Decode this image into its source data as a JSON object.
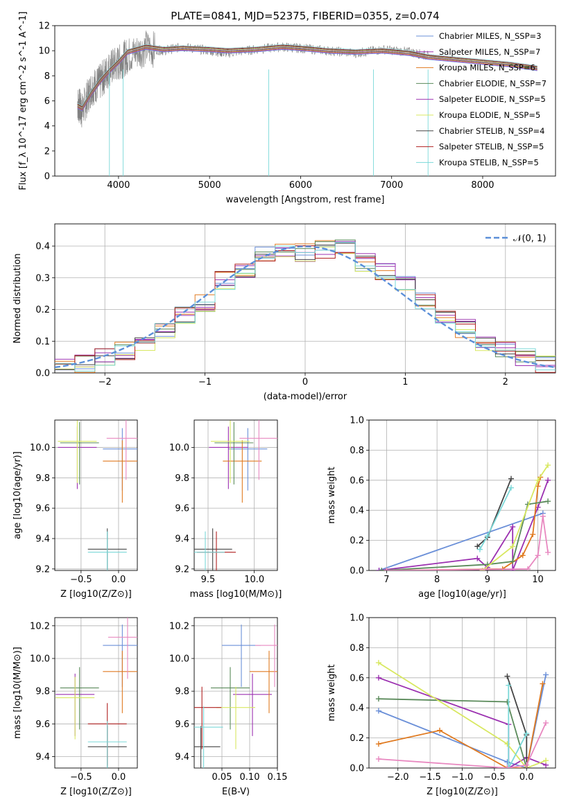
{
  "figure_title": "PLATE=0841, MJD=52375, FIBERID=0355, z=0.074",
  "colors": {
    "chabrier_miles": "#6a8fd8",
    "salpeter_miles": "#9b30b0",
    "kroupa_miles": "#e07a20",
    "chabrier_elodie": "#5a8a5a",
    "salpeter_elodie": "#9b30b0",
    "kroupa_elodie": "#d8e860",
    "chabrier_stelib": "#444444",
    "salpeter_stelib": "#b02020",
    "kroupa_stelib": "#7ad8d8",
    "pink": "#e888c0",
    "data": "#808080",
    "normal": "#5b8fd8"
  },
  "chart_data": [
    {
      "type": "line",
      "id": "spectrum",
      "title": "PLATE=0841, MJD=52375, FIBERID=0355, z=0.074",
      "xlabel": "wavelength [Angstrom, rest frame]",
      "ylabel": "Flux [f_λ 10^-17 erg cm^-2 s^-1 A^-1]",
      "xlim": [
        3300,
        8800
      ],
      "ylim": [
        0,
        12
      ],
      "xticks": [
        "4000",
        "5000",
        "6000",
        "7000",
        "8000"
      ],
      "yticks": [
        "0",
        "2",
        "4",
        "6",
        "8",
        "10",
        "12"
      ],
      "x": [
        3550,
        3600,
        3700,
        3800,
        3900,
        4000,
        4100,
        4300,
        4500,
        4700,
        5000,
        5200,
        5500,
        5800,
        6000,
        6300,
        6600,
        6900,
        7200,
        7400,
        7700,
        8000,
        8300,
        8500,
        8600
      ],
      "series": [
        {
          "name": "data",
          "values": [
            5.8,
            5.2,
            7.0,
            7.5,
            8.6,
            9.0,
            9.6,
            10.2,
            10.0,
            10.3,
            10.0,
            9.8,
            10.1,
            10.3,
            10.2,
            10.0,
            9.8,
            10.1,
            9.9,
            9.6,
            9.3,
            9.1,
            8.9,
            8.7,
            8.6
          ]
        },
        {
          "name": "model",
          "values": [
            5.6,
            5.4,
            6.6,
            7.6,
            8.4,
            9.1,
            9.9,
            10.3,
            10.1,
            10.2,
            10.1,
            10.0,
            10.1,
            10.3,
            10.2,
            10.0,
            9.9,
            10.0,
            9.8,
            9.5,
            9.3,
            9.1,
            8.9,
            8.7,
            8.6
          ]
        }
      ],
      "legend": [
        {
          "name": "Chabrier MILES",
          "nssp": "N_SSP=3",
          "color": "#6a8fd8"
        },
        {
          "name": "Salpeter MILES",
          "nssp": "N_SSP=7",
          "color": "#9b30b0"
        },
        {
          "name": "Kroupa MILES",
          "nssp": "N_SSP=6",
          "color": "#e07a20"
        },
        {
          "name": "Chabrier ELODIE",
          "nssp": "N_SSP=7",
          "color": "#5a8a5a"
        },
        {
          "name": "Salpeter ELODIE",
          "nssp": "N_SSP=5",
          "color": "#9b30b0"
        },
        {
          "name": "Kroupa ELODIE",
          "nssp": "N_SSP=5",
          "color": "#d8e860"
        },
        {
          "name": "Chabrier STELIB",
          "nssp": "N_SSP=4",
          "color": "#444444"
        },
        {
          "name": "Salpeter STELIB",
          "nssp": "N_SSP=5",
          "color": "#b02020"
        },
        {
          "name": "Kroupa STELIB",
          "nssp": "N_SSP=5",
          "color": "#7ad8d8"
        }
      ],
      "legend_position": "top-right"
    },
    {
      "type": "line",
      "id": "residuals",
      "xlabel": "(data-model)/error",
      "ylabel": "Normed distribution",
      "xlim": [
        -2.5,
        2.5
      ],
      "ylim": [
        0,
        0.47
      ],
      "xticks": [
        "−2",
        "−1",
        "0",
        "1",
        "2"
      ],
      "yticks": [
        "0.0",
        "0.1",
        "0.2",
        "0.3",
        "0.4"
      ],
      "grid": true,
      "legend": [
        {
          "name": "𝒩(0, 1)",
          "color": "#5b8fd8"
        }
      ],
      "legend_position": "top-right",
      "x": [
        -2.5,
        -2.3,
        -2.1,
        -1.9,
        -1.7,
        -1.5,
        -1.3,
        -1.1,
        -0.9,
        -0.7,
        -0.5,
        -0.3,
        -0.1,
        0.1,
        0.3,
        0.5,
        0.7,
        0.9,
        1.1,
        1.3,
        1.5,
        1.7,
        1.9,
        2.1,
        2.3,
        2.5
      ],
      "series": [
        {
          "name": "histogram",
          "values": [
            0.02,
            0.03,
            0.05,
            0.07,
            0.09,
            0.13,
            0.18,
            0.22,
            0.29,
            0.33,
            0.37,
            0.38,
            0.38,
            0.39,
            0.4,
            0.35,
            0.32,
            0.29,
            0.23,
            0.18,
            0.14,
            0.1,
            0.07,
            0.05,
            0.03,
            0.02
          ]
        }
      ]
    },
    {
      "type": "scatter",
      "id": "age_vs_Z",
      "xlabel": "Z [log10(Z/Z⊙)]",
      "ylabel": "age [log10(age/yr)]",
      "xlim": [
        -0.85,
        0.25
      ],
      "ylim": [
        9.19,
        10.18
      ],
      "xticks": [
        "−0.5",
        "0.0"
      ],
      "yticks": [
        "9.2",
        "9.4",
        "9.6",
        "9.8",
        "10.0"
      ],
      "points": [
        {
          "x": 0.05,
          "y": 9.99,
          "color": "#6a8fd8"
        },
        {
          "x": -0.55,
          "y": 10.0,
          "color": "#9b30b0"
        },
        {
          "x": 0.05,
          "y": 9.91,
          "color": "#e07a20"
        },
        {
          "x": -0.52,
          "y": 10.03,
          "color": "#5a8a5a"
        },
        {
          "x": -0.55,
          "y": 10.04,
          "color": "#d8e860"
        },
        {
          "x": -0.15,
          "y": 9.33,
          "color": "#444444"
        },
        {
          "x": -0.15,
          "y": 9.31,
          "color": "#7ad8d8"
        },
        {
          "x": 0.1,
          "y": 10.06,
          "color": "#e888c0"
        }
      ]
    },
    {
      "type": "scatter",
      "id": "age_vs_mass",
      "xlabel": "mass [log10(M/M⊙)]",
      "ylabel": "",
      "xlim": [
        9.35,
        10.25
      ],
      "ylim": [
        9.19,
        10.18
      ],
      "xticks": [
        "9.5",
        "10.0"
      ],
      "yticks": [
        "9.2",
        "9.4",
        "9.6",
        "9.8",
        "10.0"
      ],
      "points": [
        {
          "x": 9.93,
          "y": 9.99,
          "color": "#6a8fd8"
        },
        {
          "x": 9.72,
          "y": 10.0,
          "color": "#9b30b0"
        },
        {
          "x": 9.87,
          "y": 9.91,
          "color": "#e07a20"
        },
        {
          "x": 9.78,
          "y": 10.03,
          "color": "#5a8a5a"
        },
        {
          "x": 9.74,
          "y": 10.04,
          "color": "#d8e860"
        },
        {
          "x": 9.55,
          "y": 9.33,
          "color": "#444444"
        },
        {
          "x": 9.59,
          "y": 9.31,
          "color": "#b02020"
        },
        {
          "x": 9.47,
          "y": 9.31,
          "color": "#7ad8d8"
        },
        {
          "x": 10.05,
          "y": 10.06,
          "color": "#e888c0"
        }
      ]
    },
    {
      "type": "line",
      "id": "weight_vs_age",
      "xlabel": "age [log10(age/yr)]",
      "ylabel": "mass weight",
      "xlim": [
        6.65,
        10.35
      ],
      "ylim": [
        0,
        1.0
      ],
      "xticks": [
        "7",
        "8",
        "9",
        "10"
      ],
      "yticks": [
        "0.0",
        "0.2",
        "0.4",
        "0.6",
        "0.8",
        "1.0"
      ],
      "grid": true,
      "series": [
        {
          "name": "Chabrier MILES",
          "color": "#6a8fd8",
          "x": [
            6.85,
            10.1
          ],
          "y": [
            0.0,
            0.38
          ]
        },
        {
          "name": "Salpeter MILES",
          "color": "#9b30b0",
          "x": [
            6.85,
            8.8,
            9.0,
            9.5,
            9.5,
            10.0,
            10.2
          ],
          "y": [
            0.0,
            0.08,
            0.02,
            0.29,
            0.0,
            0.42,
            0.6
          ]
        },
        {
          "name": "Kroupa MILES",
          "color": "#e07a20",
          "x": [
            7.0,
            9.3,
            9.7,
            9.9,
            10.0,
            10.05
          ],
          "y": [
            0.0,
            0.01,
            0.1,
            0.24,
            0.56,
            0.62
          ]
        },
        {
          "name": "Chabrier ELODIE",
          "color": "#5a8a5a",
          "x": [
            6.9,
            9.0,
            9.5,
            9.8,
            10.2
          ],
          "y": [
            0.0,
            0.04,
            0.06,
            0.44,
            0.46
          ]
        },
        {
          "name": "Kroupa ELODIE",
          "color": "#d8e860",
          "x": [
            8.9,
            9.5,
            10.0,
            10.2
          ],
          "y": [
            0.0,
            0.16,
            0.6,
            0.7
          ]
        },
        {
          "name": "Chabrier STELIB",
          "color": "#444444",
          "x": [
            8.8,
            9.0,
            9.47
          ],
          "y": [
            0.16,
            0.22,
            0.61
          ]
        },
        {
          "name": "Kroupa STELIB",
          "color": "#7ad8d8",
          "x": [
            8.85,
            9.0,
            9.47
          ],
          "y": [
            0.14,
            0.23,
            0.55
          ]
        },
        {
          "name": "pink",
          "color": "#e888c0",
          "x": [
            7.0,
            9.8,
            10.0,
            10.1,
            10.2
          ],
          "y": [
            0.0,
            0.01,
            0.1,
            0.36,
            0.12
          ]
        }
      ]
    },
    {
      "type": "scatter",
      "id": "mass_vs_Z",
      "xlabel": "Z [log10(Z/Z⊙)]",
      "ylabel": "mass [log10(M/M⊙)]",
      "xlim": [
        -0.85,
        0.25
      ],
      "ylim": [
        9.33,
        10.25
      ],
      "xticks": [
        "−0.5",
        "0.0"
      ],
      "yticks": [
        "9.4",
        "9.6",
        "9.8",
        "10.0",
        "10.2"
      ],
      "points": [
        {
          "x": 0.05,
          "y": 10.08,
          "color": "#6a8fd8"
        },
        {
          "x": -0.58,
          "y": 9.78,
          "color": "#9b30b0"
        },
        {
          "x": 0.05,
          "y": 9.92,
          "color": "#e07a20"
        },
        {
          "x": -0.52,
          "y": 9.82,
          "color": "#5a8a5a"
        },
        {
          "x": -0.58,
          "y": 9.76,
          "color": "#d8e860"
        },
        {
          "x": -0.15,
          "y": 9.46,
          "color": "#444444"
        },
        {
          "x": -0.15,
          "y": 9.6,
          "color": "#b02020"
        },
        {
          "x": -0.15,
          "y": 9.49,
          "color": "#7ad8d8"
        },
        {
          "x": 0.12,
          "y": 10.13,
          "color": "#e888c0"
        }
      ]
    },
    {
      "type": "scatter",
      "id": "mass_vs_EBV",
      "xlabel": "E(B-V)",
      "ylabel": "",
      "xlim": [
        0.0,
        0.15
      ],
      "ylim": [
        9.33,
        10.25
      ],
      "xticks": [
        "0.05",
        "0.10",
        "0.15"
      ],
      "yticks": [
        "9.4",
        "9.6",
        "9.8",
        "10.0",
        "10.2"
      ],
      "points": [
        {
          "x": 0.085,
          "y": 10.08,
          "color": "#6a8fd8"
        },
        {
          "x": 0.105,
          "y": 9.78,
          "color": "#9b30b0"
        },
        {
          "x": 0.135,
          "y": 9.92,
          "color": "#e07a20"
        },
        {
          "x": 0.065,
          "y": 9.82,
          "color": "#5a8a5a"
        },
        {
          "x": 0.075,
          "y": 9.7,
          "color": "#d8e860"
        },
        {
          "x": 0.012,
          "y": 9.46,
          "color": "#444444"
        },
        {
          "x": 0.014,
          "y": 9.7,
          "color": "#b02020"
        },
        {
          "x": 0.017,
          "y": 9.58,
          "color": "#7ad8d8"
        },
        {
          "x": 0.145,
          "y": 10.08,
          "color": "#e888c0"
        }
      ]
    },
    {
      "type": "line",
      "id": "weight_vs_Z",
      "xlabel": "Z [log10(Z/Z⊙)]",
      "ylabel": "mass weight",
      "xlim": [
        -2.45,
        0.45
      ],
      "ylim": [
        0,
        1.0
      ],
      "xticks": [
        "−2.0",
        "−1.5",
        "−1.0",
        "−0.5",
        "0.0"
      ],
      "yticks": [
        "0.0",
        "0.2",
        "0.4",
        "0.6",
        "0.8",
        "1.0"
      ],
      "grid": true,
      "series": [
        {
          "name": "Chabrier MILES",
          "color": "#6a8fd8",
          "x": [
            -2.3,
            -0.3,
            0.0,
            0.3
          ],
          "y": [
            0.38,
            0.04,
            0.0,
            0.62
          ]
        },
        {
          "name": "Salpeter MILES",
          "color": "#9b30b0",
          "x": [
            -2.3,
            -0.28,
            -0.28,
            0.0,
            0.3
          ],
          "y": [
            0.6,
            0.29,
            0.0,
            0.07,
            0.02
          ]
        },
        {
          "name": "Kroupa MILES",
          "color": "#e07a20",
          "x": [
            -2.3,
            -1.35,
            -0.3,
            0.0,
            0.25
          ],
          "y": [
            0.16,
            0.25,
            0.0,
            0.0,
            0.56
          ]
        },
        {
          "name": "Chabrier ELODIE",
          "color": "#5a8a5a",
          "x": [
            -2.3,
            -0.3,
            0.0
          ],
          "y": [
            0.46,
            0.44,
            0.0
          ]
        },
        {
          "name": "Kroupa ELODIE",
          "color": "#d8e860",
          "x": [
            -2.3,
            -0.3,
            0.0,
            0.3
          ],
          "y": [
            0.7,
            0.16,
            0.0,
            0.05
          ]
        },
        {
          "name": "Chabrier STELIB",
          "color": "#444444",
          "x": [
            -0.3,
            0.0,
            0.0
          ],
          "y": [
            0.61,
            0.22,
            0.0
          ]
        },
        {
          "name": "Kroupa STELIB",
          "color": "#7ad8d8",
          "x": [
            -0.28,
            -0.28,
            0.0
          ],
          "y": [
            0.55,
            0.0,
            0.23
          ]
        },
        {
          "name": "pink",
          "color": "#e888c0",
          "x": [
            -2.3,
            -0.3,
            0.0,
            0.3
          ],
          "y": [
            0.06,
            0.0,
            0.02,
            0.3
          ]
        }
      ]
    }
  ]
}
